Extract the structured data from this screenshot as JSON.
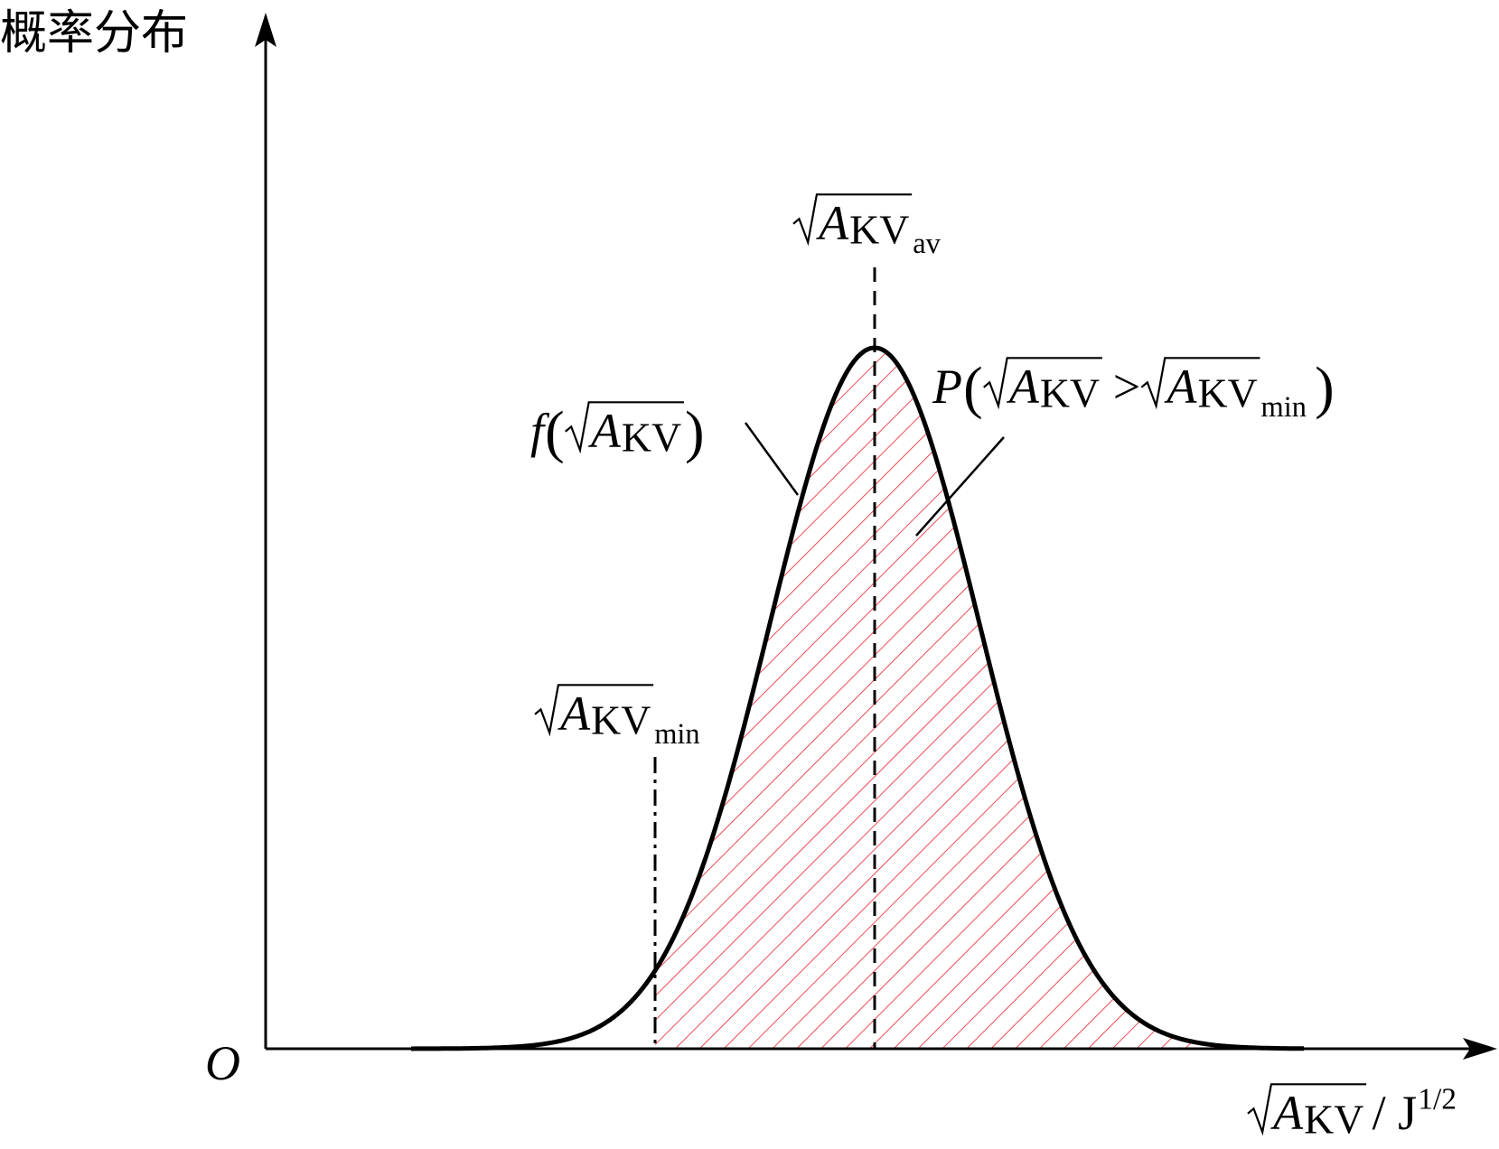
{
  "y_axis_label": "概率分布",
  "origin_label": "O",
  "x_axis_label": {
    "symbol": "A",
    "subscript": "KV",
    "unit": "/ J",
    "unit_exponent": "1/2"
  },
  "mean_label": {
    "symbol": "A",
    "subscript": "KV",
    "sub_subscript": "av"
  },
  "min_label": {
    "symbol": "A",
    "subscript": "KV",
    "sub_subscript": "min"
  },
  "curve_label": {
    "function": "f",
    "open": "(",
    "symbol": "A",
    "subscript": "KV",
    "close": ")"
  },
  "area_label": {
    "function": "P",
    "open": "(",
    "symbol": "A",
    "subscript": "KV",
    "operator": ">",
    "symbol_2": "A",
    "subscript_2": "KV",
    "sub_subscript_2": "min",
    "close": ")"
  }
}
